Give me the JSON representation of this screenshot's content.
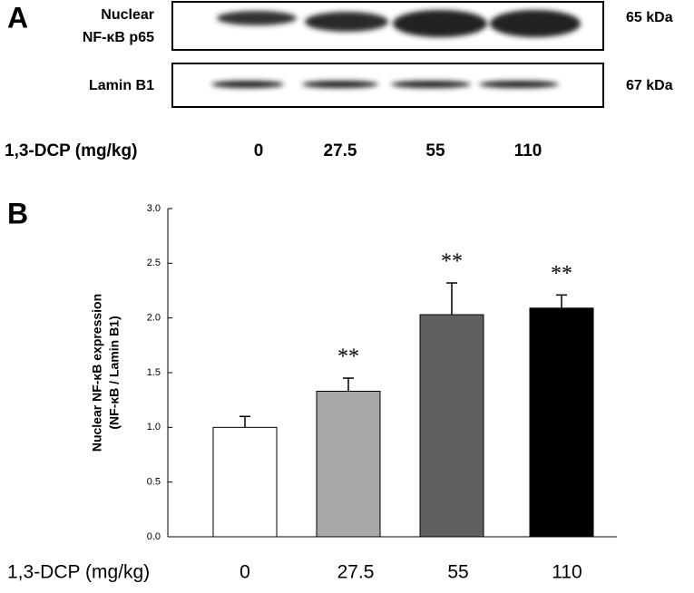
{
  "panel_a": {
    "label": "A",
    "blots": [
      {
        "name_lines": [
          "Nuclear",
          "NF-κB p65"
        ],
        "size": "65 kDa"
      },
      {
        "name_lines": [
          "Lamin B1"
        ],
        "size": "67 kDa"
      }
    ],
    "dose_label": "1,3-DCP (mg/kg)",
    "doses": [
      "0",
      "27.5",
      "55",
      "110"
    ]
  },
  "chart_data": {
    "type": "bar",
    "panel_label": "B",
    "y_label": [
      "Nuclear NF-κB expression",
      "(NF-κB / Lamin B1)"
    ],
    "x_label": "1,3-DCP (mg/kg)",
    "categories": [
      "0",
      "27.5",
      "55",
      "110"
    ],
    "values": [
      1.0,
      1.33,
      2.03,
      2.09
    ],
    "errors": [
      0.1,
      0.12,
      0.29,
      0.12
    ],
    "colors": [
      "#ffffff",
      "#a8a8a8",
      "#606060",
      "#000000"
    ],
    "annotations": [
      {
        "index": 1,
        "text": "**"
      },
      {
        "index": 2,
        "text": "**"
      },
      {
        "index": 3,
        "text": "**"
      }
    ],
    "ylim": [
      0,
      3
    ],
    "yticks": [
      {
        "value": 0,
        "label": "0.0"
      },
      {
        "value": 0.5,
        "label": "0.5"
      },
      {
        "value": 1,
        "label": "1.0"
      },
      {
        "value": 1.5,
        "label": "1.5"
      },
      {
        "value": 2,
        "label": "2.0"
      },
      {
        "value": 2.5,
        "label": "2.5"
      },
      {
        "value": 3,
        "label": "3.0"
      }
    ]
  }
}
